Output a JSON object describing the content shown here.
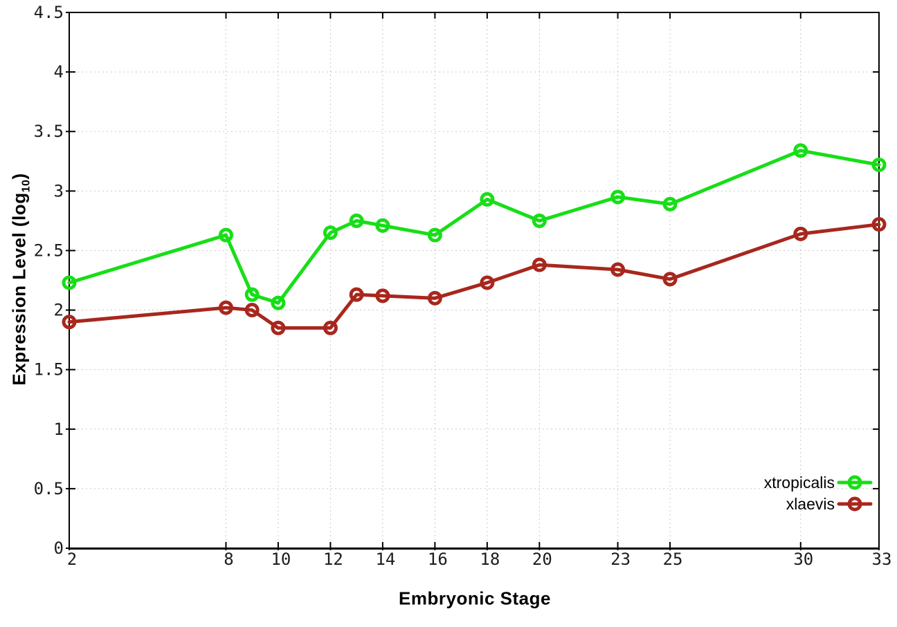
{
  "figure": {
    "background": "#ffffff"
  },
  "chart_data": {
    "type": "line",
    "title": "",
    "xlabel": "Embryonic Stage",
    "ylabel": "Expression Level (log10)",
    "ylabel_parts": {
      "pre": "Expression Level (log",
      "sub": "10",
      "post": ")"
    },
    "x": [
      2,
      8,
      9,
      10,
      12,
      13,
      14,
      16,
      18,
      20,
      23,
      25,
      30,
      33
    ],
    "series": [
      {
        "name": "xtropicalis",
        "color": "#17de17",
        "values": [
          2.23,
          2.63,
          2.13,
          2.06,
          2.65,
          2.75,
          2.71,
          2.63,
          2.93,
          2.75,
          2.95,
          2.89,
          3.34,
          3.22
        ]
      },
      {
        "name": "xlaevis",
        "color": "#a8271d",
        "values": [
          1.9,
          2.02,
          2.0,
          1.85,
          1.85,
          2.13,
          2.12,
          2.1,
          2.23,
          2.38,
          2.34,
          2.26,
          2.64,
          2.72
        ]
      }
    ],
    "xlim": [
      2,
      33
    ],
    "ylim": [
      0,
      4.5
    ],
    "x_ticks": {
      "values": [
        2,
        8,
        10,
        12,
        14,
        16,
        18,
        20,
        23,
        25,
        30,
        33
      ],
      "labels": [
        "2",
        "8",
        "10",
        "12",
        "14",
        "16",
        "18",
        "20",
        "23",
        "25",
        "30",
        "33"
      ]
    },
    "y_ticks": {
      "values": [
        0,
        0.5,
        1,
        1.5,
        2,
        2.5,
        3,
        3.5,
        4,
        4.5
      ],
      "labels": [
        "0",
        "0.5",
        "1",
        "1.5",
        "2",
        "2.5",
        "3",
        "3.5",
        "4",
        "4.5"
      ]
    },
    "grid": true,
    "legend_position": "bottom-right",
    "style": {
      "grid_color": "#c9c9c9",
      "axis_color": "#000000",
      "tick_label_color": "#1c1c1c",
      "line_width": 5,
      "marker": "open-circle",
      "marker_radius": 8
    }
  }
}
